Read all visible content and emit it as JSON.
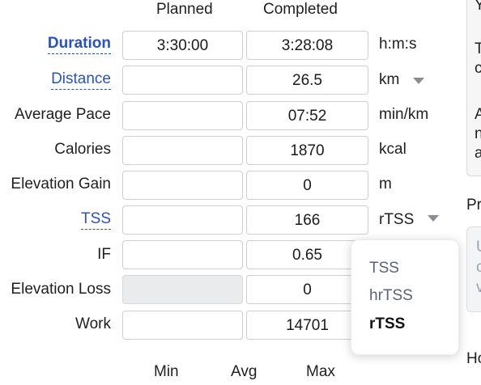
{
  "headers": {
    "planned": "Planned",
    "completed": "Completed"
  },
  "rows": [
    {
      "label": "Duration",
      "planned": "3:30:00",
      "completed": "3:28:08",
      "unit": "h:m:s"
    },
    {
      "label": "Distance",
      "planned": "",
      "completed": "26.5",
      "unit": "km"
    },
    {
      "label": "Average Pace",
      "planned": "",
      "completed": "07:52",
      "unit": "min/km"
    },
    {
      "label": "Calories",
      "planned": "",
      "completed": "1870",
      "unit": "kcal"
    },
    {
      "label": "Elevation Gain",
      "planned": "",
      "completed": "0",
      "unit": "m"
    },
    {
      "label": "TSS",
      "planned": "",
      "completed": "166",
      "unit": "rTSS"
    },
    {
      "label": "IF",
      "planned": "",
      "completed": "0.65",
      "unit": ""
    },
    {
      "label": "Elevation Loss",
      "planned": "",
      "completed": "0",
      "unit": ""
    },
    {
      "label": "Work",
      "planned": "",
      "completed": "14701",
      "unit": ""
    }
  ],
  "tss_menu": {
    "options": [
      "TSS",
      "hrTSS",
      "rTSS"
    ],
    "selected": "rTSS"
  },
  "footer": {
    "min": "Min",
    "avg": "Avg",
    "max": "Max"
  },
  "right_edge": {
    "top_char": "Y",
    "lines": [
      "T",
      "c",
      "A",
      "n",
      "a"
    ],
    "pr_label": "Pr",
    "panel_chars": [
      "U",
      "c",
      "v"
    ],
    "ho_label": "Ho"
  },
  "colors": {
    "link": "#2a50c9",
    "disabled_bg": "#eaebed"
  }
}
